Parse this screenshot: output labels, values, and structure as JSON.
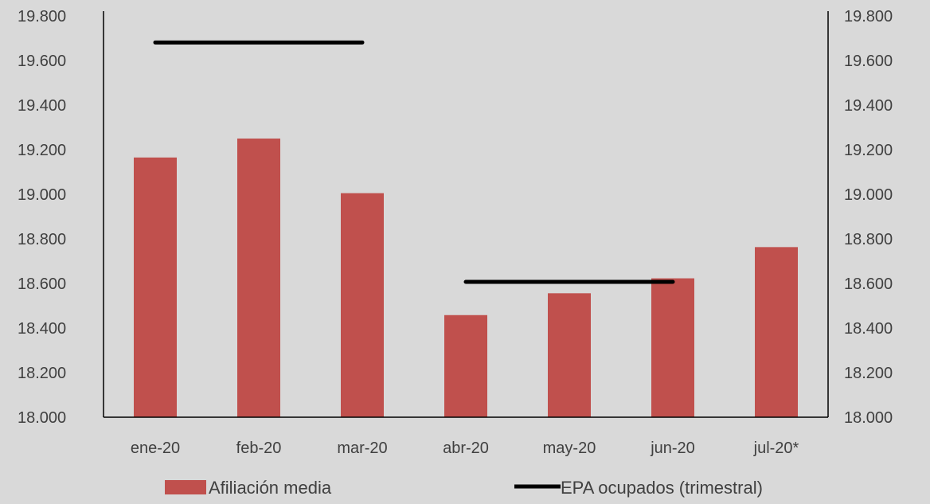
{
  "chart_data": {
    "type": "bar",
    "categories": [
      "ene-20",
      "feb-20",
      "mar-20",
      "abr-20",
      "may-20",
      "jun-20",
      "jul-20*"
    ],
    "series": [
      {
        "name": "Afiliación media",
        "type": "bar",
        "axis": "left",
        "color": "#c0504d",
        "values": [
          19165,
          19250,
          19005,
          18458,
          18556,
          18623,
          18763
        ]
      },
      {
        "name": "EPA ocupados (trimestral)",
        "type": "line",
        "axis": "right",
        "color": "#000000",
        "segments": [
          {
            "from": "ene-20",
            "to": "mar-20",
            "value": 19681
          },
          {
            "from": "abr-20",
            "to": "jun-20",
            "value": 18607
          }
        ]
      }
    ],
    "ylim": [
      18000,
      19800
    ],
    "y2lim": [
      18000,
      19800
    ],
    "yticks": [
      "18.000",
      "18.200",
      "18.400",
      "18.600",
      "18.800",
      "19.000",
      "19.200",
      "19.400",
      "19.600",
      "19.800"
    ],
    "grid": false,
    "legend_position": "bottom"
  }
}
